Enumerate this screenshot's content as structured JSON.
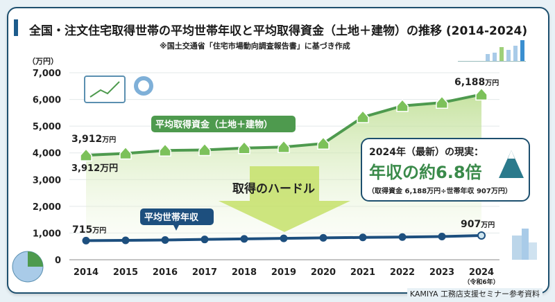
{
  "title": "全国・注文住宅取得世帯の平均世帯年収と平均取得資金（土地＋建物）の推移 (2014-2024)",
  "subtitle": "※国土交通省「住宅市場動向調査報告書」に基づき作成",
  "footer": "KAMIYA 工務店支援セミナー参考資料",
  "colors": {
    "acquisition": "#4e9a4e",
    "income": "#1d4f7e",
    "arrow": "#c5e06a"
  },
  "chart_data": {
    "type": "line",
    "ylabel": "（万円）",
    "ylim": [
      0,
      7000
    ],
    "yticks": [
      "0",
      "1,000",
      "2,000",
      "3,000",
      "4,000",
      "5,000",
      "6,000",
      "7,000"
    ],
    "categories": [
      "2014",
      "2015",
      "2016",
      "2017",
      "2018",
      "2019",
      "2020",
      "2021",
      "2022",
      "2023",
      "2024"
    ],
    "x_sublabel_2024": "（令和6年）",
    "grid": true,
    "series": [
      {
        "name": "平均取得資金（土地＋建物）",
        "values": [
          3912,
          3980,
          4090,
          4110,
          4180,
          4220,
          4350,
          5340,
          5760,
          5880,
          6188
        ]
      },
      {
        "name": "平均世帯年収",
        "values": [
          715,
          725,
          740,
          760,
          780,
          800,
          820,
          835,
          850,
          870,
          907
        ]
      }
    ],
    "annotations": {
      "acq_start": "3,912",
      "acq_start_unit": "万円",
      "acq_start_axis": "3,912万円",
      "acq_end": "6,188",
      "acq_end_unit": "万円",
      "inc_start": "715",
      "inc_start_unit": "万円",
      "inc_end": "907",
      "inc_end_unit": "万円",
      "hurdle": "取得のハードル"
    }
  },
  "callout": {
    "line1": "2024年（最新）の現実：",
    "line2": "年収の約6.8倍",
    "line3": "（取得資金 6,188万円÷世帯年収 907万円）"
  }
}
